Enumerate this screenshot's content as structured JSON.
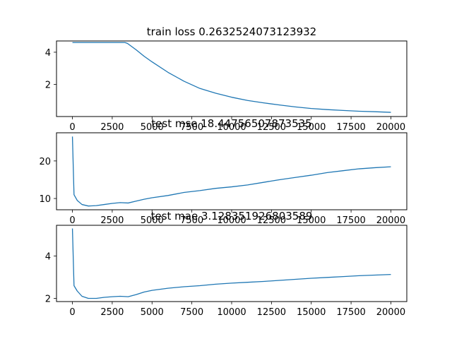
{
  "chart_data": [
    {
      "type": "line",
      "title": "train loss 0.2632524073123932",
      "xlim": [
        -1000,
        21000
      ],
      "ylim": [
        0,
        4.7
      ],
      "xticks": [
        0,
        2500,
        5000,
        7500,
        10000,
        12500,
        15000,
        17500,
        20000
      ],
      "yticks": [
        2,
        4
      ],
      "color": "#1f77b4",
      "x": [
        0,
        3300,
        3450,
        4000,
        4500,
        5000,
        6000,
        7000,
        8000,
        9000,
        10000,
        11000,
        12000,
        13000,
        14000,
        15000,
        16000,
        17000,
        18000,
        19000,
        20000
      ],
      "y": [
        4.6,
        4.6,
        4.55,
        4.15,
        3.75,
        3.4,
        2.75,
        2.2,
        1.75,
        1.45,
        1.2,
        1.0,
        0.85,
        0.72,
        0.6,
        0.5,
        0.43,
        0.38,
        0.33,
        0.3,
        0.26
      ]
    },
    {
      "type": "line",
      "title": "test mse 18.44756507873535",
      "xlim": [
        -1000,
        21000
      ],
      "ylim": [
        7.0,
        27.5
      ],
      "xticks": [
        0,
        2500,
        5000,
        7500,
        10000,
        12500,
        15000,
        17500,
        20000
      ],
      "yticks": [
        10,
        20
      ],
      "color": "#1f77b4",
      "x": [
        0,
        100,
        300,
        600,
        1000,
        1500,
        2000,
        2500,
        3000,
        3500,
        4000,
        4500,
        5000,
        6000,
        7000,
        8000,
        9000,
        10000,
        11000,
        12000,
        13000,
        14000,
        15000,
        16000,
        17000,
        18000,
        19000,
        20000
      ],
      "y": [
        26.5,
        11.0,
        9.5,
        8.4,
        8.0,
        8.1,
        8.4,
        8.7,
        8.9,
        8.8,
        9.3,
        9.8,
        10.2,
        10.8,
        11.6,
        12.1,
        12.7,
        13.1,
        13.6,
        14.3,
        15.0,
        15.6,
        16.2,
        16.9,
        17.4,
        17.9,
        18.2,
        18.45
      ]
    },
    {
      "type": "line",
      "title": "test mae 3.128351926803589",
      "xlim": [
        -1000,
        21000
      ],
      "ylim": [
        1.85,
        5.45
      ],
      "xticks": [
        0,
        2500,
        5000,
        7500,
        10000,
        12500,
        15000,
        17500,
        20000
      ],
      "yticks": [
        2,
        4
      ],
      "color": "#1f77b4",
      "x": [
        0,
        100,
        300,
        600,
        1000,
        1500,
        2000,
        2500,
        3000,
        3500,
        4000,
        4500,
        5000,
        6000,
        7000,
        8000,
        9000,
        10000,
        11000,
        12000,
        13000,
        14000,
        15000,
        16000,
        17000,
        18000,
        19000,
        20000
      ],
      "y": [
        5.3,
        2.6,
        2.35,
        2.1,
        2.0,
        2.0,
        2.05,
        2.08,
        2.1,
        2.08,
        2.18,
        2.3,
        2.38,
        2.48,
        2.55,
        2.6,
        2.67,
        2.72,
        2.76,
        2.8,
        2.85,
        2.9,
        2.95,
        2.99,
        3.03,
        3.07,
        3.1,
        3.13
      ]
    }
  ]
}
